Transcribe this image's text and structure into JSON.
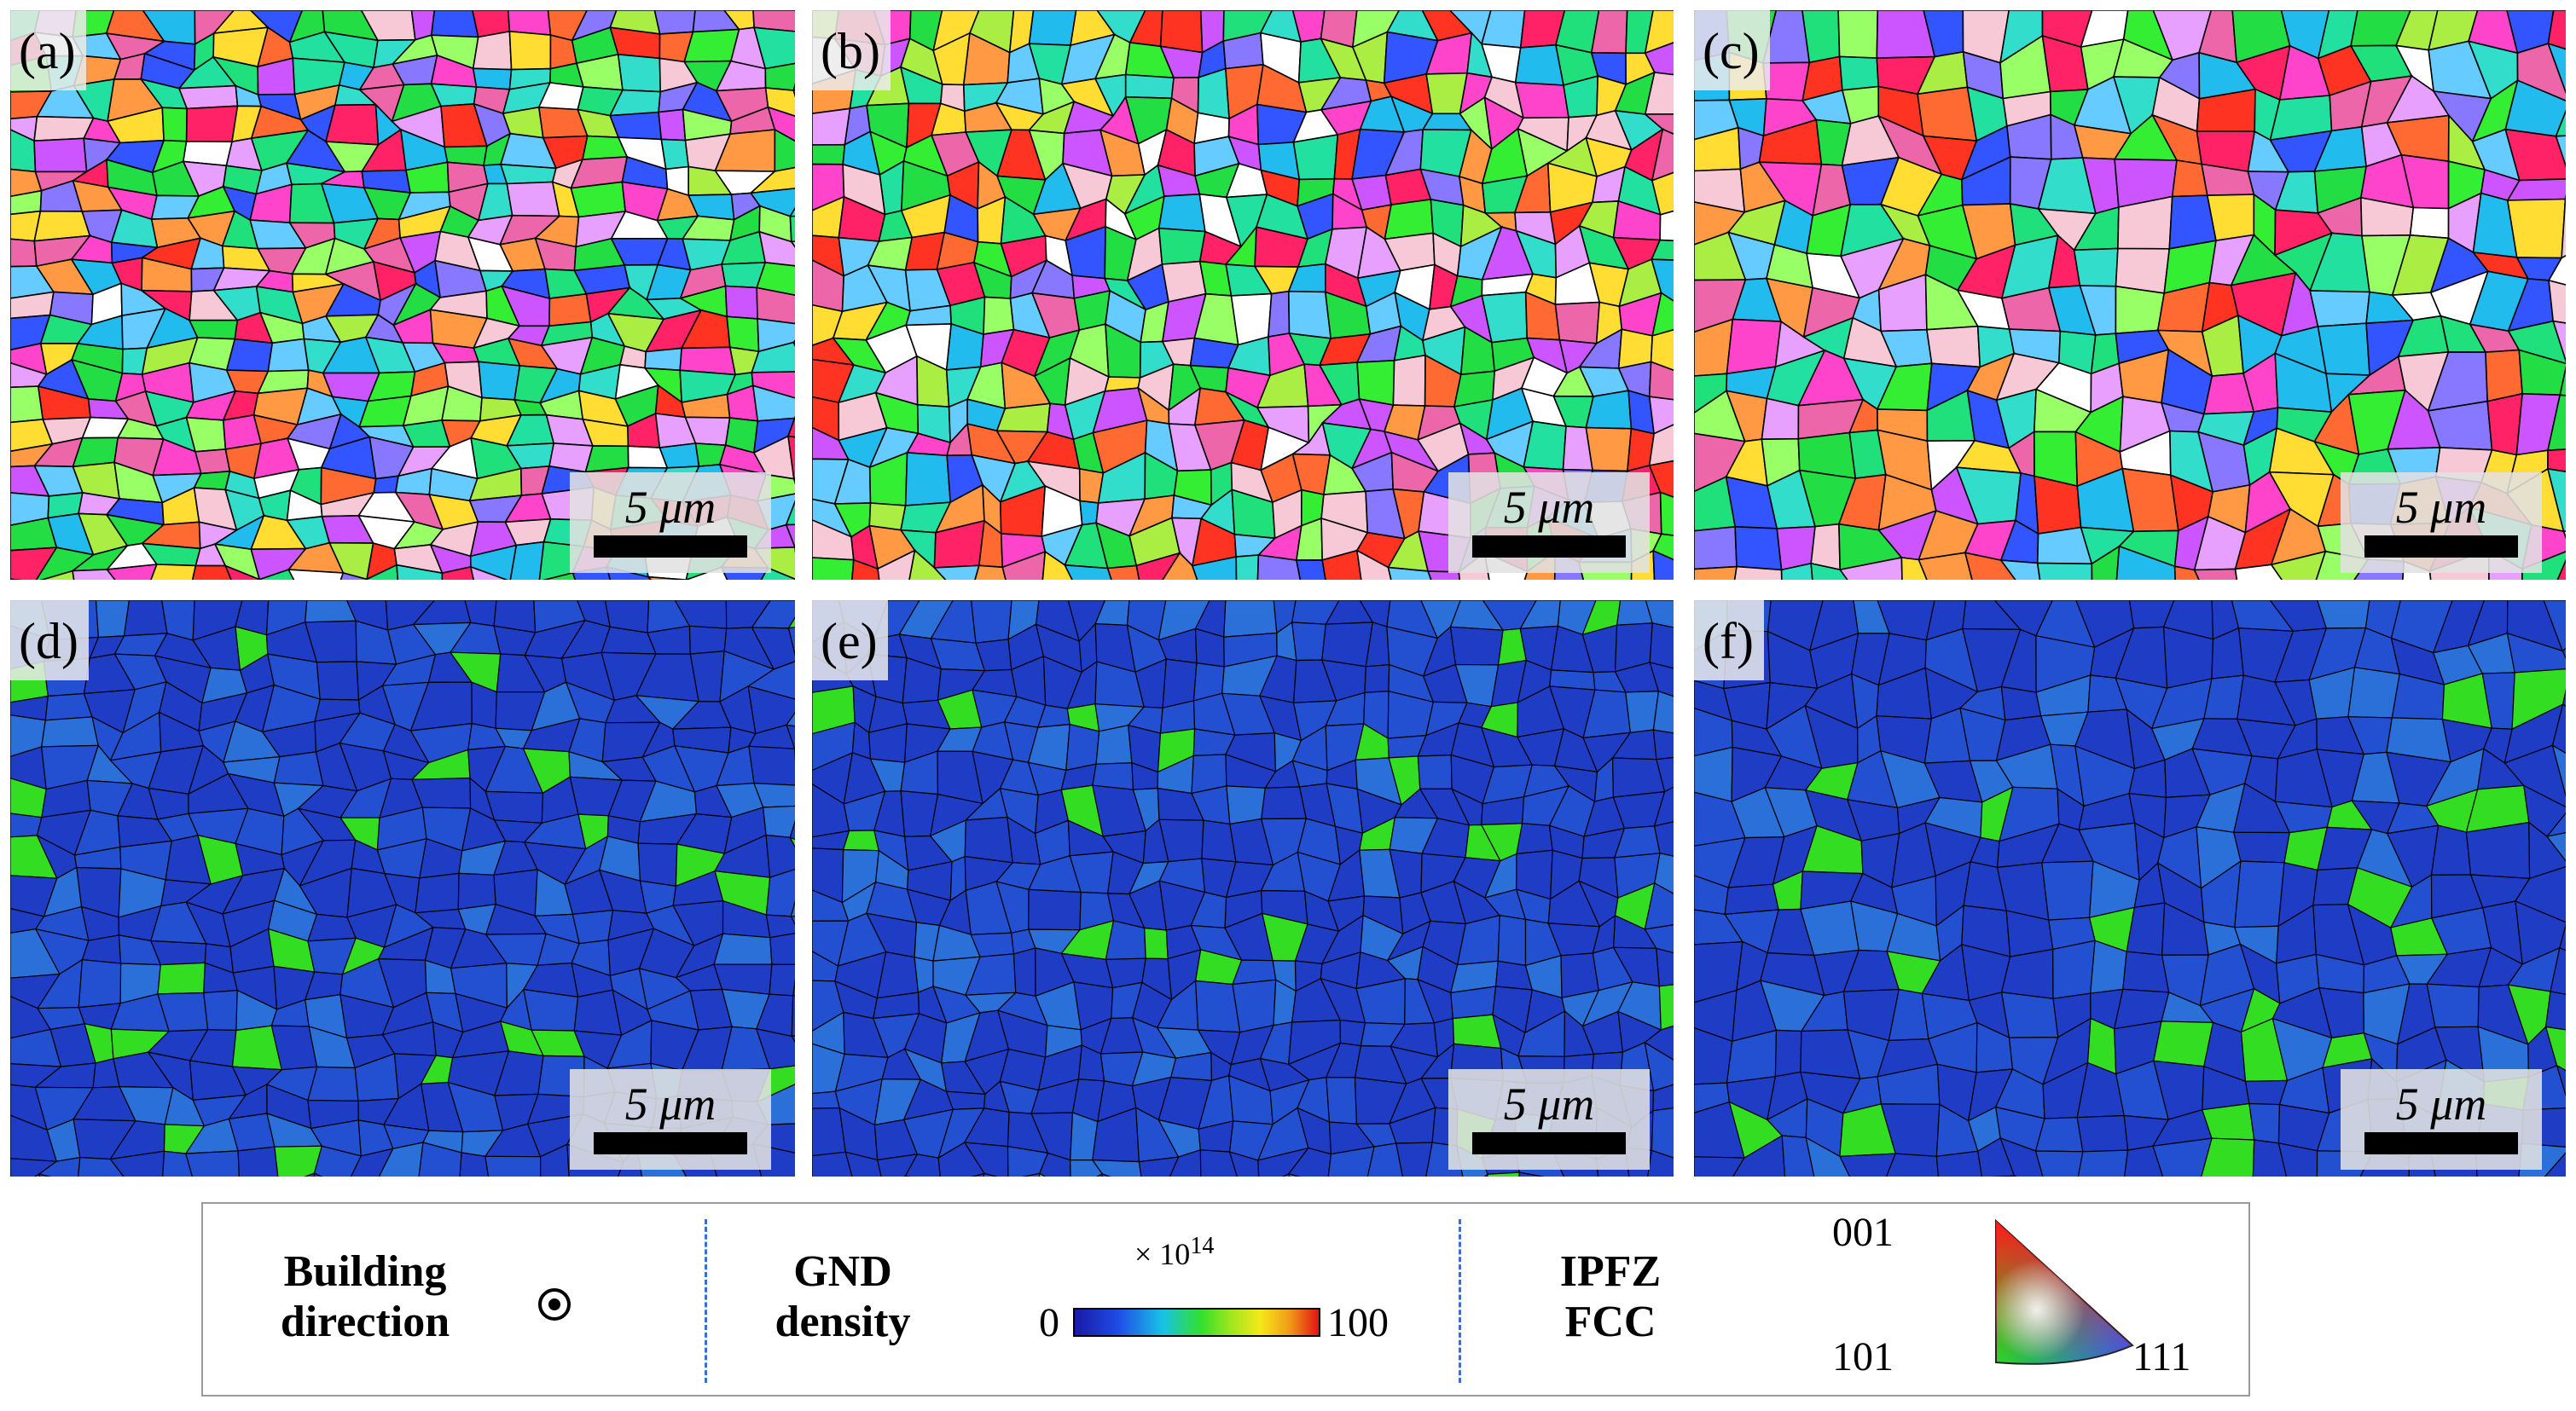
{
  "panels": [
    {
      "label": "(a)",
      "scale": "5 μm",
      "kind": "ipf"
    },
    {
      "label": "(b)",
      "scale": "5 μm",
      "kind": "ipf"
    },
    {
      "label": "(c)",
      "scale": "5 μm",
      "kind": "ipf"
    },
    {
      "label": "(d)",
      "scale": "5 μm",
      "kind": "gnd"
    },
    {
      "label": "(e)",
      "scale": "5 μm",
      "kind": "gnd"
    },
    {
      "label": "(f)",
      "scale": "5 μm",
      "kind": "gnd"
    }
  ],
  "legend": {
    "building_line1": "Building",
    "building_line2": "direction",
    "gnd_line1": "GND",
    "gnd_line2": "density",
    "colorbar_multiplier": "× 10",
    "colorbar_exponent": "14",
    "colorbar_min": "0",
    "colorbar_max": "100",
    "ipf_line1": "IPFZ",
    "ipf_line2": "FCC",
    "triangle_001": "001",
    "triangle_101": "101",
    "triangle_111": "111"
  },
  "colors": {
    "boundary": "#000000",
    "gnd_base": "#2244cc",
    "gnd_high": "#33dd22",
    "divider": "#3a6fd0"
  }
}
